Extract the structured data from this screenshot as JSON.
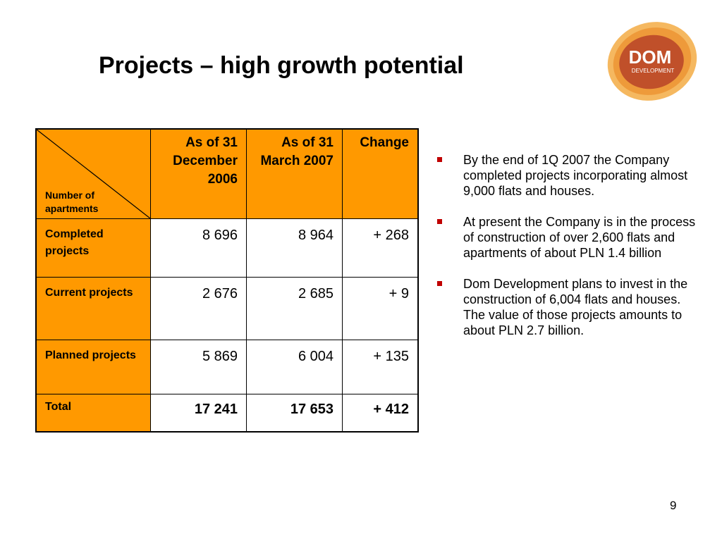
{
  "title": "Projects – high growth potential",
  "logo": {
    "line1": "DOM",
    "line2": "DEVELOPMENT"
  },
  "table": {
    "corner_label": "Number of apartments",
    "columns": [
      "As of 31 December 2006",
      "As of  31 March 2007",
      "Change"
    ],
    "rows": [
      {
        "label": "Completed projects",
        "values": [
          "8 696",
          "8 964",
          "+ 268"
        ]
      },
      {
        "label": "Current projects",
        "values": [
          "2 676",
          "2 685",
          "+ 9"
        ]
      },
      {
        "label": "Planned projects",
        "values": [
          "5 869",
          "6 004",
          "+ 135"
        ]
      },
      {
        "label": "Total",
        "values": [
          "17 241",
          "17 653",
          "+ 412"
        ]
      }
    ]
  },
  "bullets": [
    "By the end of 1Q 2007 the Company completed projects incorporating almost 9,000 flats and houses.",
    "At present the Company is in the process of construction of over 2,600 flats and apartments of about PLN 1.4 billion",
    "Dom Development plans to invest in the construction of 6,004 flats and houses. The value of those projects amounts to about PLN 2.7 billion."
  ],
  "page_number": "9",
  "colors": {
    "header_fill": "#FF9900",
    "bullet": "#C00000",
    "logo_outer": "#F0A030",
    "logo_inner": "#C0502A"
  }
}
